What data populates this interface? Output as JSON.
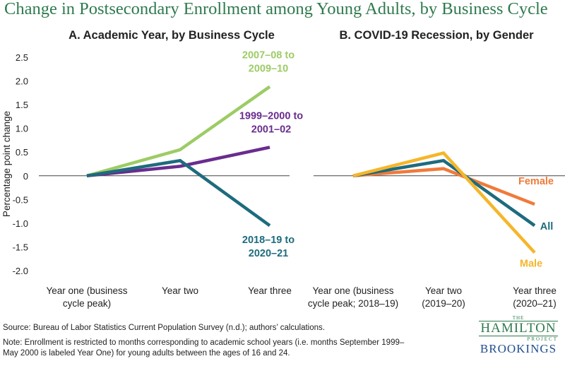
{
  "title": "Change in Postsecondary Enrollment among Young Adults, by Business Cycle",
  "source": "Source: Bureau of Labor Statistics Current Population Survey (n.d.); authors’ calculations.",
  "note_line1": "Note: Enrollment is restricted to months corresponding to academic school years (i.e. months September 1999–",
  "note_line2": "May 2000 is labeled Year One) for young adults between the ages of 16 and 24.",
  "logo": {
    "the": "THE",
    "hamilton": "HAMILTON",
    "project": "PROJECT",
    "brookings": "BROOKINGS"
  },
  "chart_data": [
    {
      "type": "line",
      "title": "A. Academic Year, by Business Cycle",
      "ylabel": "Percentage point change",
      "ylim": [
        -2.0,
        2.5
      ],
      "yticks": [
        "2.5",
        "2.0",
        "1.5",
        "1.0",
        "0.5",
        "0",
        "-0.5",
        "-1.0",
        "-1.5",
        "-2.0"
      ],
      "categories": [
        [
          "Year one (business",
          "cycle peak)"
        ],
        [
          "Year two"
        ],
        [
          "Year three"
        ]
      ],
      "series": [
        {
          "name": "2007–08 to 2009–10",
          "label_lines": [
            "2007–08 to",
            "2009–10"
          ],
          "values": [
            0,
            0.55,
            1.88
          ],
          "color": "#9ccc65"
        },
        {
          "name": "1999–2000 to 2001–02",
          "label_lines": [
            "1999–2000 to",
            "2001–02"
          ],
          "values": [
            0,
            0.2,
            0.6
          ],
          "color": "#6a2c8e"
        },
        {
          "name": "2018–19 to 2020–21",
          "label_lines": [
            "2018–19 to",
            "2020–21"
          ],
          "values": [
            0,
            0.32,
            -1.05
          ],
          "color": "#1d6b7e"
        }
      ]
    },
    {
      "type": "line",
      "title": "B. COVID-19 Recession, by Gender",
      "ylim": [
        -2.0,
        2.5
      ],
      "categories": [
        [
          "Year one (business",
          "cycle peak; 2018–19)"
        ],
        [
          "Year two",
          "(2019–20)"
        ],
        [
          "Year three",
          "(2020–21)"
        ]
      ],
      "series": [
        {
          "name": "Female",
          "label_lines": [
            "Female"
          ],
          "values": [
            0,
            0.15,
            -0.6
          ],
          "color": "#f07a3a"
        },
        {
          "name": "All",
          "label_lines": [
            "All"
          ],
          "values": [
            0,
            0.32,
            -1.05
          ],
          "color": "#1d6b7e"
        },
        {
          "name": "Male",
          "label_lines": [
            "Male"
          ],
          "values": [
            0,
            0.48,
            -1.62
          ],
          "color": "#f5b62a"
        }
      ]
    }
  ]
}
